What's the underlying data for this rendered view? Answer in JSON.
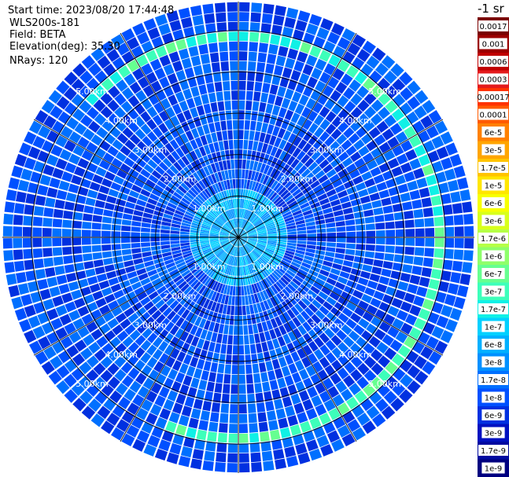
{
  "header": {
    "start_time": "Start time: 2023/08/20 17:44:48",
    "instrument": "WLS200s-181",
    "field": "Field: BETA",
    "elevation": "Elevation(deg): 35.30",
    "nrays": "NRays: 120"
  },
  "colorbar": {
    "unit_label": "-1 sr",
    "ticks": [
      "0.0017",
      "0.001",
      "0.0006",
      "0.0003",
      "0.00017",
      "0.0001",
      "6e-5",
      "3e-5",
      "1.7e-5",
      "1e-5",
      "6e-6",
      "3e-6",
      "1.7e-6",
      "1e-6",
      "6e-7",
      "3e-7",
      "1.7e-7",
      "1e-7",
      "6e-8",
      "3e-8",
      "1.7e-8",
      "1e-8",
      "6e-9",
      "3e-9",
      "1.7e-9",
      "1e-9"
    ],
    "colors": [
      "#7a0000",
      "#9c0000",
      "#c00000",
      "#e31a1c",
      "#ff3300",
      "#ff5a00",
      "#ff8000",
      "#ffa500",
      "#ffc400",
      "#ffe600",
      "#f7ff00",
      "#d8ff1c",
      "#b6ff46",
      "#8eff6a",
      "#66ff90",
      "#3dffba",
      "#10f0e6",
      "#00d0ff",
      "#00b0ff",
      "#0090ff",
      "#0070ff",
      "#0050ff",
      "#0030e0",
      "#0010c0",
      "#000aa0",
      "#000080"
    ]
  },
  "chart_data": {
    "type": "heatmap",
    "projection": "polar PPI",
    "range_rings_km": [
      1,
      2,
      3,
      4,
      5
    ],
    "ring_labels": [
      "1.00km",
      "2.00km",
      "3.00km",
      "4.00km",
      "5.00km"
    ],
    "max_range_km": 5.7,
    "n_rays": 120,
    "spoke_step_deg": 30,
    "field": "BETA",
    "elevation_deg": 35.3,
    "near_range_level": "1e-7",
    "background_level": "1e-8",
    "ring_feature": {
      "range_km": 4.85,
      "level": "6e-7"
    }
  }
}
